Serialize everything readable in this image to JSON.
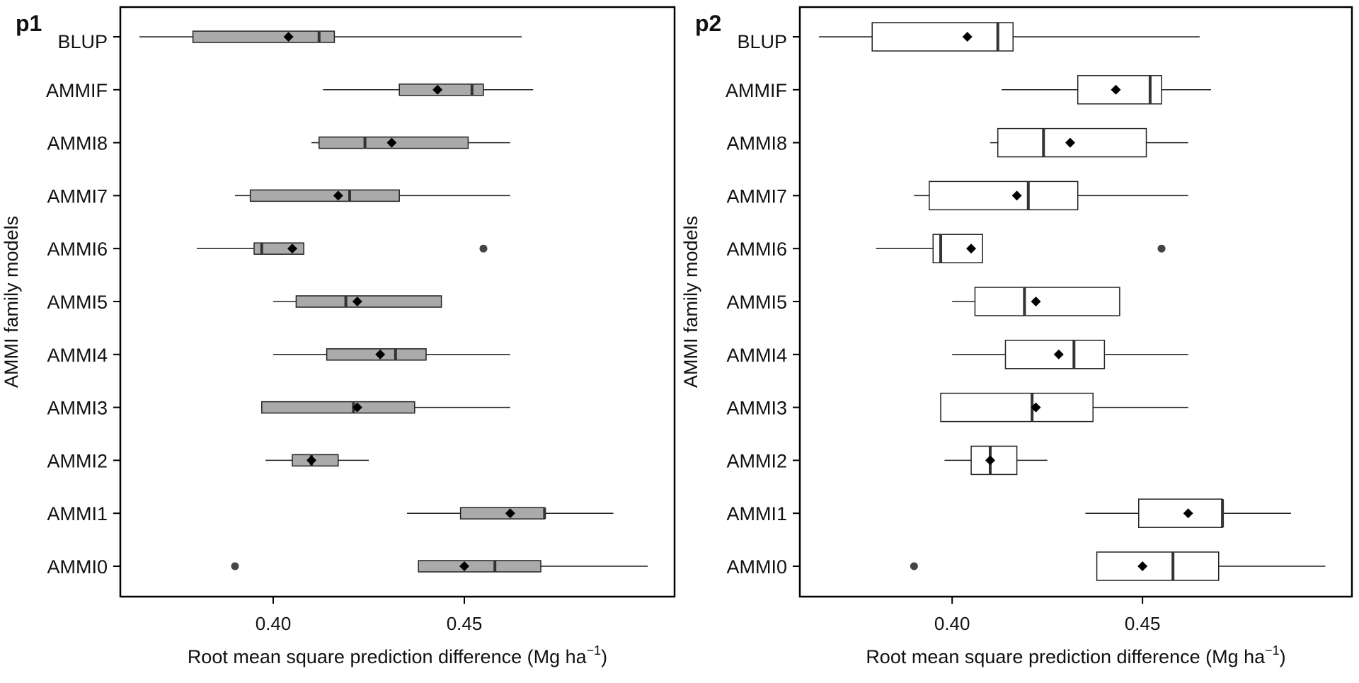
{
  "chart_data": [
    {
      "type": "boxplot",
      "panel_label": "p1",
      "box_fill": "#aaaaaa",
      "xlabel": "Root mean square prediction difference (Mg ha",
      "xlabel_sup": "−1",
      "xlabel_end": ")",
      "ylabel": "AMMI family models",
      "xlim": [
        0.36,
        0.505
      ],
      "xticks": [
        "0.40",
        "0.45"
      ],
      "categories": [
        "BLUP",
        "AMMIF",
        "AMMI8",
        "AMMI7",
        "AMMI6",
        "AMMI5",
        "AMMI4",
        "AMMI3",
        "AMMI2",
        "AMMI1",
        "AMMI0"
      ],
      "boxes": [
        {
          "label": "BLUP",
          "whisker_low": 0.365,
          "q1": 0.379,
          "median": 0.412,
          "q3": 0.416,
          "whisker_high": 0.465,
          "mean": 0.404,
          "outliers": []
        },
        {
          "label": "AMMIF",
          "whisker_low": 0.413,
          "q1": 0.433,
          "median": 0.452,
          "q3": 0.455,
          "whisker_high": 0.468,
          "mean": 0.443,
          "outliers": []
        },
        {
          "label": "AMMI8",
          "whisker_low": 0.41,
          "q1": 0.412,
          "median": 0.424,
          "q3": 0.451,
          "whisker_high": 0.462,
          "mean": 0.431,
          "outliers": []
        },
        {
          "label": "AMMI7",
          "whisker_low": 0.39,
          "q1": 0.394,
          "median": 0.42,
          "q3": 0.433,
          "whisker_high": 0.462,
          "mean": 0.417,
          "outliers": []
        },
        {
          "label": "AMMI6",
          "whisker_low": 0.38,
          "q1": 0.395,
          "median": 0.397,
          "q3": 0.408,
          "whisker_high": 0.408,
          "mean": 0.405,
          "outliers": [
            0.455
          ]
        },
        {
          "label": "AMMI5",
          "whisker_low": 0.4,
          "q1": 0.406,
          "median": 0.419,
          "q3": 0.444,
          "whisker_high": 0.444,
          "mean": 0.422,
          "outliers": []
        },
        {
          "label": "AMMI4",
          "whisker_low": 0.4,
          "q1": 0.414,
          "median": 0.432,
          "q3": 0.44,
          "whisker_high": 0.462,
          "mean": 0.428,
          "outliers": []
        },
        {
          "label": "AMMI3",
          "whisker_low": 0.397,
          "q1": 0.397,
          "median": 0.421,
          "q3": 0.437,
          "whisker_high": 0.462,
          "mean": 0.422,
          "outliers": []
        },
        {
          "label": "AMMI2",
          "whisker_low": 0.398,
          "q1": 0.405,
          "median": 0.41,
          "q3": 0.417,
          "whisker_high": 0.425,
          "mean": 0.41,
          "outliers": []
        },
        {
          "label": "AMMI1",
          "whisker_low": 0.435,
          "q1": 0.449,
          "median": 0.471,
          "q3": 0.471,
          "whisker_high": 0.489,
          "mean": 0.462,
          "outliers": []
        },
        {
          "label": "AMMI0",
          "whisker_low": 0.438,
          "q1": 0.438,
          "median": 0.458,
          "q3": 0.47,
          "whisker_high": 0.498,
          "mean": 0.45,
          "outliers": [
            0.39
          ]
        }
      ]
    },
    {
      "type": "boxplot",
      "panel_label": "p2",
      "box_fill": "#ffffff",
      "xlabel": "Root mean square prediction difference (Mg ha",
      "xlabel_sup": "−1",
      "xlabel_end": ")",
      "ylabel": "AMMI family models",
      "xlim": [
        0.36,
        0.505
      ],
      "xticks": [
        "0.40",
        "0.45"
      ],
      "categories": [
        "BLUP",
        "AMMIF",
        "AMMI8",
        "AMMI7",
        "AMMI6",
        "AMMI5",
        "AMMI4",
        "AMMI3",
        "AMMI2",
        "AMMI1",
        "AMMI0"
      ],
      "boxes": [
        {
          "label": "BLUP",
          "whisker_low": 0.365,
          "q1": 0.379,
          "median": 0.412,
          "q3": 0.416,
          "whisker_high": 0.465,
          "mean": 0.404,
          "outliers": []
        },
        {
          "label": "AMMIF",
          "whisker_low": 0.413,
          "q1": 0.433,
          "median": 0.452,
          "q3": 0.455,
          "whisker_high": 0.468,
          "mean": 0.443,
          "outliers": []
        },
        {
          "label": "AMMI8",
          "whisker_low": 0.41,
          "q1": 0.412,
          "median": 0.424,
          "q3": 0.451,
          "whisker_high": 0.462,
          "mean": 0.431,
          "outliers": []
        },
        {
          "label": "AMMI7",
          "whisker_low": 0.39,
          "q1": 0.394,
          "median": 0.42,
          "q3": 0.433,
          "whisker_high": 0.462,
          "mean": 0.417,
          "outliers": []
        },
        {
          "label": "AMMI6",
          "whisker_low": 0.38,
          "q1": 0.395,
          "median": 0.397,
          "q3": 0.408,
          "whisker_high": 0.408,
          "mean": 0.405,
          "outliers": [
            0.455
          ]
        },
        {
          "label": "AMMI5",
          "whisker_low": 0.4,
          "q1": 0.406,
          "median": 0.419,
          "q3": 0.444,
          "whisker_high": 0.444,
          "mean": 0.422,
          "outliers": []
        },
        {
          "label": "AMMI4",
          "whisker_low": 0.4,
          "q1": 0.414,
          "median": 0.432,
          "q3": 0.44,
          "whisker_high": 0.462,
          "mean": 0.428,
          "outliers": []
        },
        {
          "label": "AMMI3",
          "whisker_low": 0.397,
          "q1": 0.397,
          "median": 0.421,
          "q3": 0.437,
          "whisker_high": 0.462,
          "mean": 0.422,
          "outliers": []
        },
        {
          "label": "AMMI2",
          "whisker_low": 0.398,
          "q1": 0.405,
          "median": 0.41,
          "q3": 0.417,
          "whisker_high": 0.425,
          "mean": 0.41,
          "outliers": []
        },
        {
          "label": "AMMI1",
          "whisker_low": 0.435,
          "q1": 0.449,
          "median": 0.471,
          "q3": 0.471,
          "whisker_high": 0.489,
          "mean": 0.462,
          "outliers": []
        },
        {
          "label": "AMMI0",
          "whisker_low": 0.438,
          "q1": 0.438,
          "median": 0.458,
          "q3": 0.47,
          "whisker_high": 0.498,
          "mean": 0.45,
          "outliers": [
            0.39
          ]
        }
      ]
    }
  ]
}
